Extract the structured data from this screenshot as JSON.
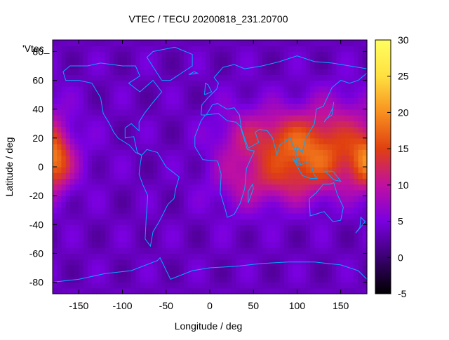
{
  "chart_data": {
    "type": "heatmap",
    "title": "VTEC / TECU 20200818_231.20700",
    "xlabel": "Longitude / deg",
    "ylabel": "Latitude / deg",
    "legend_key": "'Vtec_",
    "xlim": [
      -180,
      180
    ],
    "ylim": [
      -88,
      88
    ],
    "x_ticks": [
      -150,
      -100,
      -50,
      0,
      50,
      100,
      150
    ],
    "y_ticks": [
      -80,
      -60,
      -40,
      -20,
      0,
      20,
      40,
      60,
      80
    ],
    "colorbar": {
      "min": -5,
      "max": 30,
      "ticks": [
        -5,
        0,
        5,
        10,
        15,
        20,
        25,
        30
      ]
    },
    "palette": [
      "#000000",
      "#3a0070",
      "#7a00e0",
      "#c010a0",
      "#e04010",
      "#f89020",
      "#ffe040",
      "#ffff60"
    ],
    "coastline_color": "#00aaff",
    "grid": false
  }
}
